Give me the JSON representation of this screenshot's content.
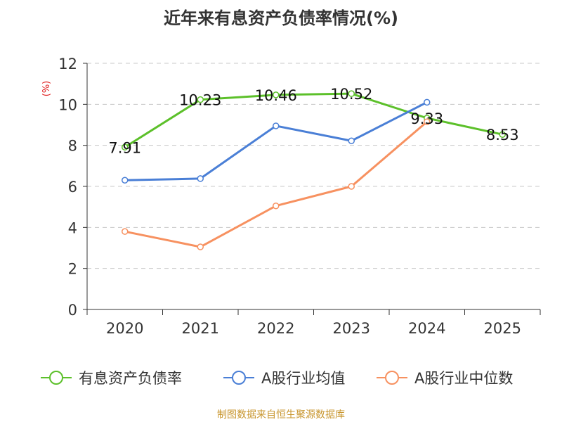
{
  "chart_data": {
    "type": "line",
    "title": "近年来有息资产负债率情况(%)",
    "ylabel": "(%)",
    "xlabel": "",
    "categories": [
      "2020",
      "2021",
      "2022",
      "2023",
      "2024",
      "2025"
    ],
    "ylim": [
      0,
      12
    ],
    "yticks": [
      "0",
      "2",
      "4",
      "6",
      "8",
      "10",
      "12"
    ],
    "grid": true,
    "legend_position": "bottom",
    "series": [
      {
        "name": "有息资产负债率",
        "color": "#5cc02a",
        "values": [
          7.91,
          10.23,
          10.46,
          10.52,
          9.33,
          8.53
        ],
        "labels": [
          "7.91",
          "10.23",
          "10.46",
          "10.52",
          "9.33",
          "8.53"
        ]
      },
      {
        "name": "A股行业均值",
        "color": "#4a7fd6",
        "values": [
          6.3,
          6.38,
          8.95,
          8.22,
          10.1,
          null
        ]
      },
      {
        "name": "A股行业中位数",
        "color": "#f79160",
        "values": [
          3.8,
          3.05,
          5.05,
          6.0,
          9.15,
          null
        ]
      }
    ],
    "source": "制图数据来自恒生聚源数据库"
  }
}
